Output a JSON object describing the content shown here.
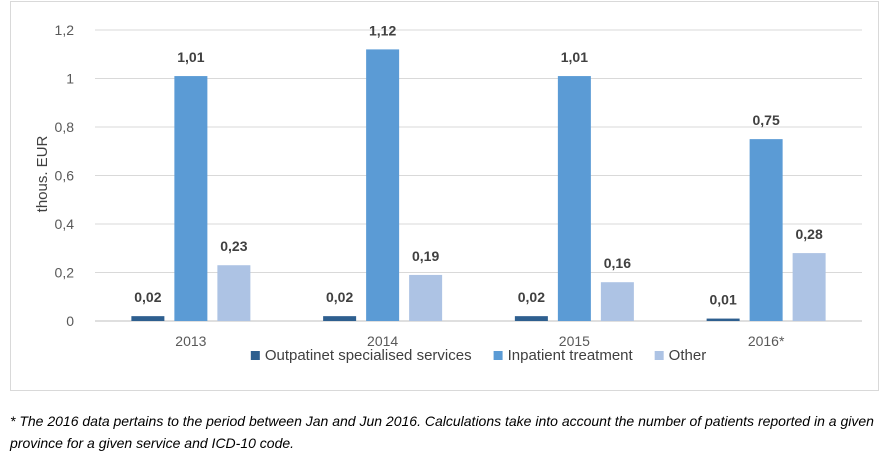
{
  "chart_data": {
    "type": "bar",
    "categories": [
      "2013",
      "2014",
      "2015",
      "2016*"
    ],
    "series": [
      {
        "name": "Outpatinet specialised services",
        "color": "#2e5f8f",
        "values": [
          0.02,
          0.02,
          0.02,
          0.01
        ],
        "labels": [
          "0,02",
          "0,02",
          "0,02",
          "0,01"
        ]
      },
      {
        "name": "Inpatient treatment",
        "color": "#5b9bd5",
        "values": [
          1.01,
          1.12,
          1.01,
          0.75
        ],
        "labels": [
          "1,01",
          "1,12",
          "1,01",
          "0,75"
        ]
      },
      {
        "name": "Other",
        "color": "#adc3e4",
        "values": [
          0.23,
          0.19,
          0.16,
          0.28
        ],
        "labels": [
          "0,23",
          "0,19",
          "0,16",
          "0,28"
        ]
      }
    ],
    "ylabel": "thous. EUR",
    "ylim": [
      0,
      1.2
    ],
    "yticks": [
      0,
      0.2,
      0.4,
      0.6,
      0.8,
      1,
      1.2
    ],
    "ytick_labels": [
      "0",
      "0,2",
      "0,4",
      "0,6",
      "0,8",
      "1",
      "1,2"
    ],
    "grid": true,
    "legend_position": "bottom"
  },
  "footnote": "* The 2016 data pertains to the period between Jan and Jun 2016. Calculations take into account the number of patients reported in a given province for a given service and ICD-10 code."
}
